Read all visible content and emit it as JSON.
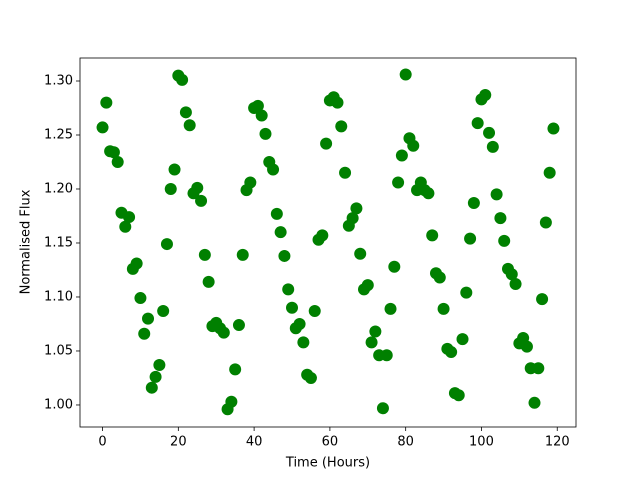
{
  "chart_data": {
    "type": "scatter",
    "xlabel": "Time (Hours)",
    "ylabel": "Normalised Flux",
    "color": "#008000",
    "x": [
      0,
      1,
      2,
      3,
      4,
      5,
      6,
      7,
      8,
      9,
      10,
      11,
      12,
      13,
      14,
      15,
      16,
      17,
      18,
      19,
      20,
      21,
      22,
      23,
      24,
      25,
      26,
      27,
      28,
      29,
      30,
      31,
      32,
      33,
      34,
      35,
      36,
      37,
      38,
      39,
      40,
      41,
      42,
      43,
      44,
      45,
      46,
      47,
      48,
      49,
      50,
      51,
      52,
      53,
      54,
      55,
      56,
      57,
      58,
      59,
      60,
      61,
      62,
      63,
      64,
      65,
      66,
      67,
      68,
      69,
      70,
      71,
      72,
      73,
      74,
      75,
      76,
      77,
      78,
      79,
      80,
      81,
      82,
      83,
      84,
      85,
      86,
      87,
      88,
      89,
      90,
      91,
      92,
      93,
      94,
      95,
      96,
      97,
      98,
      99,
      100,
      101,
      102,
      103,
      104,
      105,
      106,
      107,
      108,
      109,
      110,
      111,
      112,
      113,
      114,
      115,
      116,
      117,
      118,
      119
    ],
    "values": [
      1.257,
      1.28,
      1.235,
      1.234,
      1.225,
      1.178,
      1.165,
      1.174,
      1.126,
      1.131,
      1.099,
      1.066,
      1.08,
      1.016,
      1.026,
      1.037,
      1.087,
      1.149,
      1.2,
      1.218,
      1.305,
      1.301,
      1.271,
      1.259,
      1.196,
      1.201,
      1.189,
      1.139,
      1.114,
      1.073,
      1.076,
      1.071,
      1.067,
      0.996,
      1.003,
      1.033,
      1.074,
      1.139,
      1.199,
      1.206,
      1.275,
      1.277,
      1.268,
      1.251,
      1.225,
      1.218,
      1.177,
      1.16,
      1.138,
      1.107,
      1.09,
      1.071,
      1.075,
      1.058,
      1.028,
      1.025,
      1.087,
      1.153,
      1.157,
      1.242,
      1.282,
      1.285,
      1.28,
      1.258,
      1.215,
      1.166,
      1.173,
      1.182,
      1.14,
      1.107,
      1.111,
      1.058,
      1.068,
      1.046,
      0.997,
      1.046,
      1.089,
      1.128,
      1.206,
      1.231,
      1.306,
      1.247,
      1.24,
      1.199,
      1.206,
      1.199,
      1.196,
      1.157,
      1.122,
      1.118,
      1.089,
      1.052,
      1.049,
      1.011,
      1.009,
      1.061,
      1.104,
      1.154,
      1.187,
      1.261,
      1.283,
      1.287,
      1.252,
      1.239,
      1.195,
      1.173,
      1.152,
      1.126,
      1.121,
      1.112,
      1.057,
      1.062,
      1.054,
      1.034,
      1.002,
      1.034,
      1.098,
      1.169,
      1.215,
      1.256
    ],
    "xlim": [
      -5.95,
      124.95
    ],
    "ylim": [
      0.9796,
      1.3213
    ],
    "xticks": [
      0,
      20,
      40,
      60,
      80,
      100,
      120
    ],
    "yticks": [
      {
        "value": 1.0,
        "label": "1.00"
      },
      {
        "value": 1.05,
        "label": "1.05"
      },
      {
        "value": 1.1,
        "label": "1.10"
      },
      {
        "value": 1.15,
        "label": "1.15"
      },
      {
        "value": 1.2,
        "label": "1.20"
      },
      {
        "value": 1.25,
        "label": "1.25"
      },
      {
        "value": 1.3,
        "label": "1.30"
      }
    ]
  }
}
